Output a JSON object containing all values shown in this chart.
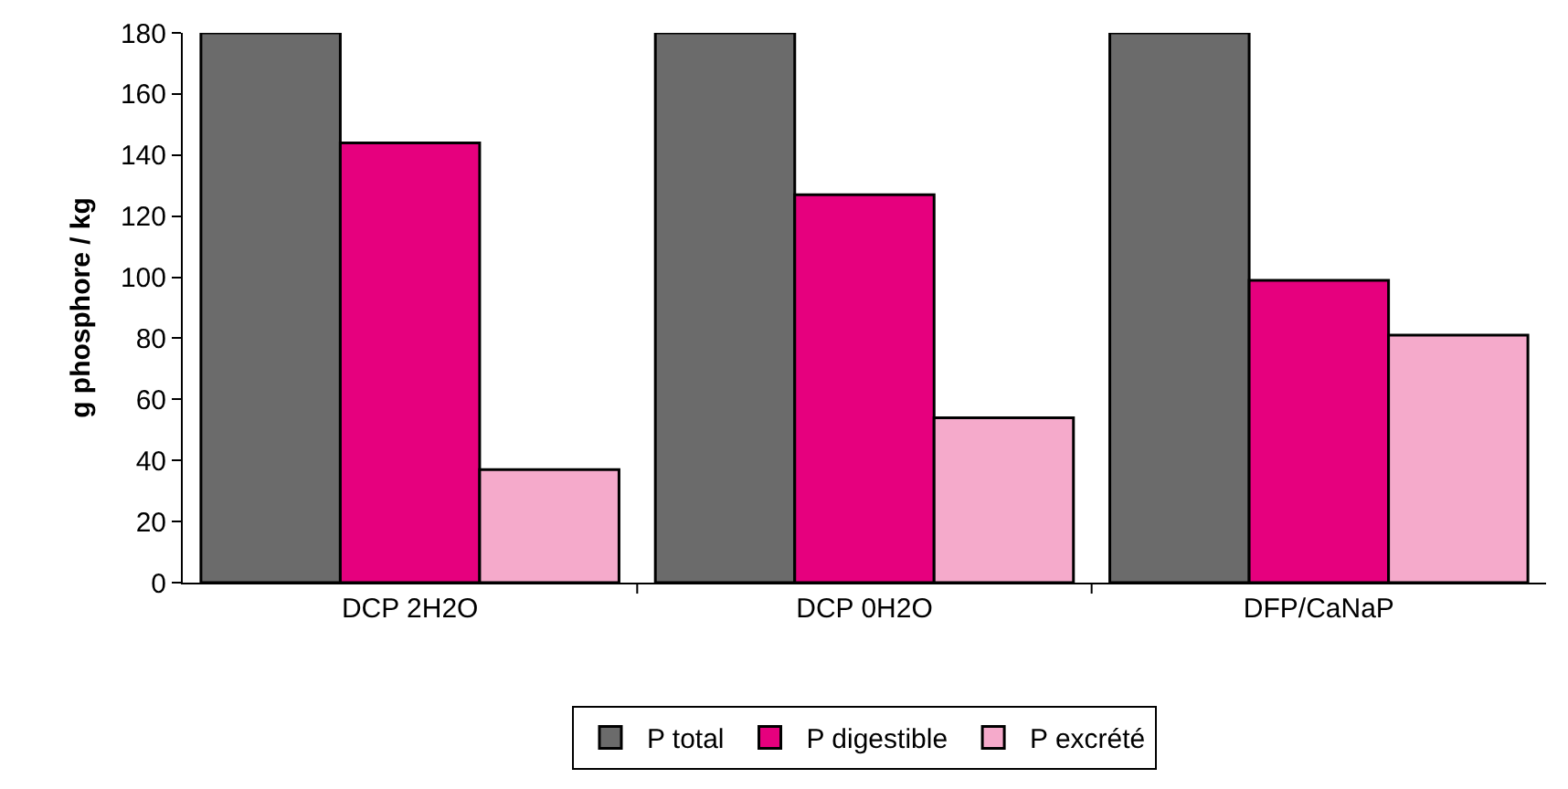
{
  "chart_data": {
    "type": "bar",
    "ylabel": "g phosphore / kg",
    "categories": [
      "DCP 2H2O",
      "DCP 0H2O",
      "DFP/CaNaP"
    ],
    "series": [
      {
        "name": "P total",
        "color": "#6b6b6b",
        "values": [
          180,
          180,
          180
        ]
      },
      {
        "name": "P digestible",
        "color": "#e6007e",
        "values": [
          144,
          127,
          99
        ]
      },
      {
        "name": "P excrété",
        "color": "#f5aacb",
        "values": [
          37,
          54,
          81
        ]
      }
    ],
    "ylim": [
      0,
      180
    ],
    "yticks": [
      0,
      20,
      40,
      60,
      80,
      100,
      120,
      140,
      160,
      180
    ],
    "grid": false,
    "legend": "bottom"
  }
}
